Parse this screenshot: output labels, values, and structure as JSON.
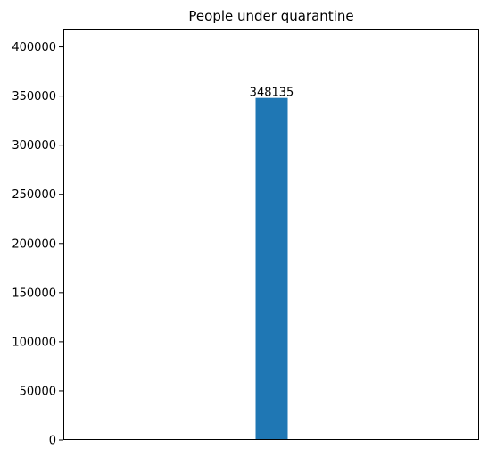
{
  "chart_data": {
    "type": "bar",
    "title": "People under quarantine",
    "xlabel": "",
    "ylabel": "",
    "categories": [
      ""
    ],
    "values": [
      348135
    ],
    "data_labels": [
      "348135"
    ],
    "ylim": [
      0,
      417762
    ],
    "yticks": [
      0,
      50000,
      100000,
      150000,
      200000,
      250000,
      300000,
      350000,
      400000
    ],
    "ytick_labels": [
      "0",
      "50000",
      "100000",
      "150000",
      "200000",
      "250000",
      "300000",
      "350000",
      "400000"
    ],
    "bar_color": "#1f77b4",
    "grid": false,
    "legend": "none"
  }
}
